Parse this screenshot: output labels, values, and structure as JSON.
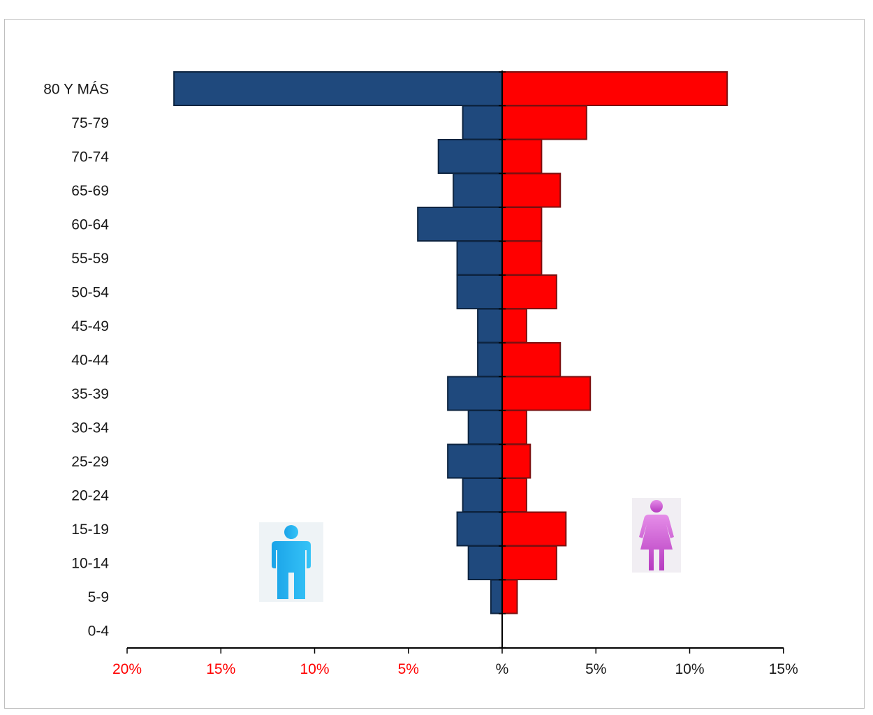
{
  "chart_data": {
    "type": "bar",
    "orientation": "horizontal",
    "layout": "population-pyramid",
    "categories": [
      "80 Y MÁS",
      "75-79",
      "70-74",
      "65-69",
      "60-64",
      "55-59",
      "50-54",
      "45-49",
      "40-44",
      "35-39",
      "30-34",
      "25-29",
      "20-24",
      "15-19",
      "10-14",
      "5-9",
      "0-4"
    ],
    "series": [
      {
        "values": [
          17.5,
          2.1,
          3.4,
          2.6,
          4.5,
          2.4,
          2.4,
          1.3,
          1.3,
          2.9,
          1.8,
          2.9,
          2.1,
          2.4,
          1.8,
          0.6,
          0.0
        ]
      },
      {
        "values": [
          12.0,
          4.5,
          2.1,
          3.1,
          2.1,
          2.1,
          2.9,
          1.3,
          3.1,
          4.7,
          1.3,
          1.5,
          1.3,
          3.4,
          2.9,
          0.8,
          0.0
        ]
      }
    ],
    "xlim": [
      -20,
      15
    ],
    "x_ticks": [
      {
        "value": -20,
        "label": "20%"
      },
      {
        "value": -15,
        "label": "15%"
      },
      {
        "value": -10,
        "label": "10%"
      },
      {
        "value": -5,
        "label": "5%"
      },
      {
        "value": 0,
        "label": "%"
      },
      {
        "value": 5,
        "label": "5%"
      },
      {
        "value": 10,
        "label": "10%"
      },
      {
        "value": 15,
        "label": "15%"
      }
    ],
    "colors": {
      "male_fill": "#1f497d",
      "male_stroke": "#0d2440",
      "female_fill": "#ff0000",
      "female_stroke": "#7a1010",
      "neg_tick_label": "#ff0000",
      "pos_tick_label": "#1a1a1a",
      "axis": "#000000"
    },
    "icons": {
      "male": "male-person-icon",
      "female": "female-person-icon"
    },
    "grid": false,
    "legend": "none"
  }
}
